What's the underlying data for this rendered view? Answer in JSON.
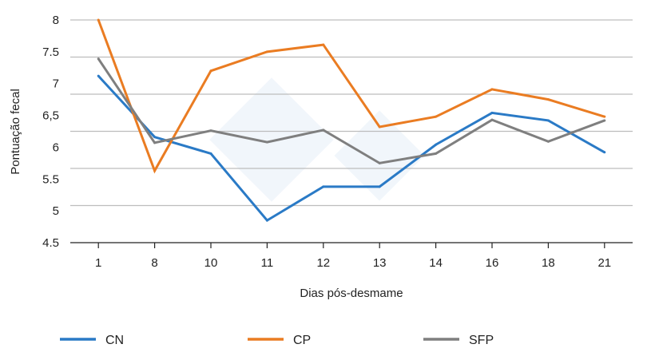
{
  "chart_data": {
    "type": "line",
    "title": "",
    "xlabel": "Dias pós-desmame",
    "ylabel": "Pontuação fecal",
    "categories": [
      "1",
      "8",
      "10",
      "11",
      "12",
      "13",
      "14",
      "16",
      "18",
      "21"
    ],
    "yticks": [
      "4.5",
      "5",
      "5.5",
      "6",
      "6,5",
      "7",
      "7.5",
      "8"
    ],
    "ylim": [
      4.5,
      8
    ],
    "grid": true,
    "legend_position": "bottom",
    "series": [
      {
        "name": "CN",
        "color": "#2a7ac6",
        "values": [
          7.12,
          6.16,
          5.9,
          4.85,
          5.38,
          5.38,
          6.04,
          6.54,
          6.42,
          5.92
        ]
      },
      {
        "name": "CP",
        "color": "#ea7c22",
        "values": [
          8.0,
          5.63,
          7.2,
          7.5,
          7.61,
          6.32,
          6.48,
          6.91,
          6.75,
          6.48
        ]
      },
      {
        "name": "SFP",
        "color": "#7f7f7f",
        "values": [
          7.39,
          6.07,
          6.26,
          6.08,
          6.27,
          5.75,
          5.9,
          6.43,
          6.09,
          6.42
        ]
      }
    ]
  }
}
